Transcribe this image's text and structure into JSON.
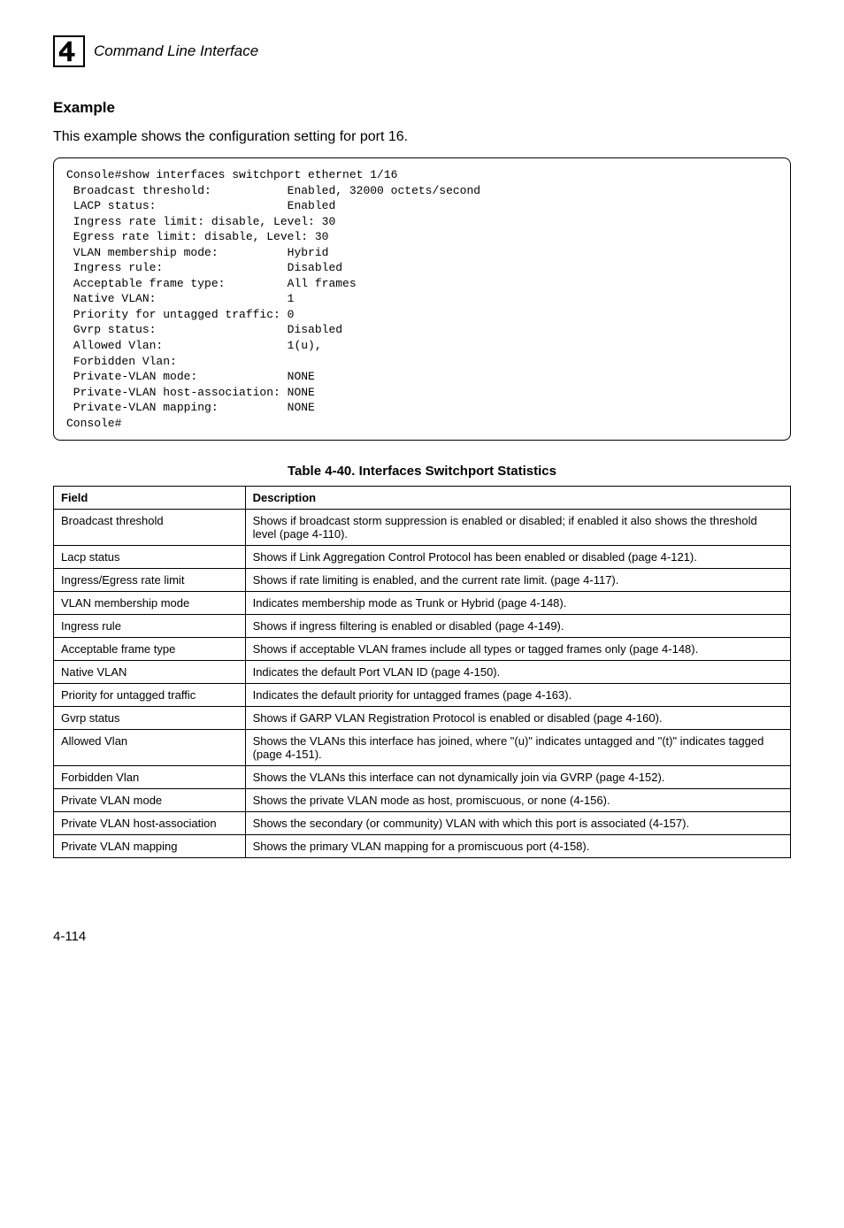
{
  "header": {
    "icon_number": "4",
    "text": "Command Line Interface"
  },
  "example": {
    "heading": "Example",
    "description": "This example shows the configuration setting for port 16."
  },
  "console_lines": [
    "Console#show interfaces switchport ethernet 1/16",
    " Broadcast threshold:           Enabled, 32000 octets/second",
    " LACP status:                   Enabled",
    " Ingress rate limit: disable, Level: 30",
    " Egress rate limit: disable, Level: 30",
    " VLAN membership mode:          Hybrid",
    " Ingress rule:                  Disabled",
    " Acceptable frame type:         All frames",
    " Native VLAN:                   1",
    " Priority for untagged traffic: 0",
    " Gvrp status:                   Disabled",
    " Allowed Vlan:                  1(u),",
    " Forbidden Vlan:",
    " Private-VLAN mode:             NONE",
    " Private-VLAN host-association: NONE",
    " Private-VLAN mapping:          NONE",
    "Console#"
  ],
  "table": {
    "caption": "Table 4-40.  Interfaces Switchport Statistics",
    "columns": [
      "Field",
      "Description"
    ],
    "rows": [
      [
        "Broadcast threshold",
        "Shows if broadcast storm suppression is enabled or disabled; if enabled it also shows the threshold level (page 4-110)."
      ],
      [
        "Lacp status",
        "Shows if Link Aggregation Control Protocol has been enabled or disabled (page 4-121)."
      ],
      [
        "Ingress/Egress rate limit",
        "Shows if rate limiting is enabled, and the current rate limit. (page 4-117)."
      ],
      [
        "VLAN membership mode",
        "Indicates membership mode as Trunk or Hybrid (page 4-148)."
      ],
      [
        "Ingress rule",
        "Shows if ingress filtering is enabled or disabled (page 4-149)."
      ],
      [
        "Acceptable frame type",
        "Shows if acceptable VLAN frames include all types or tagged frames only (page 4-148)."
      ],
      [
        "Native VLAN",
        "Indicates the default Port VLAN ID (page 4-150)."
      ],
      [
        "Priority for untagged traffic",
        "Indicates the default priority for untagged frames (page 4-163)."
      ],
      [
        "Gvrp status",
        "Shows if GARP VLAN Registration Protocol is enabled or disabled (page 4-160)."
      ],
      [
        "Allowed Vlan",
        "Shows the VLANs this interface has joined, where \"(u)\" indicates untagged and \"(t)\" indicates tagged (page 4-151)."
      ],
      [
        "Forbidden Vlan",
        "Shows the VLANs this interface can not dynamically join via GVRP (page 4-152)."
      ],
      [
        "Private VLAN mode",
        "Shows the private VLAN mode as host, promiscuous, or none (4-156)."
      ],
      [
        "Private VLAN host-association",
        "Shows the secondary (or community) VLAN with which this port is associated (4-157)."
      ],
      [
        "Private VLAN mapping",
        "Shows the primary VLAN mapping for a promiscuous port (4-158)."
      ]
    ]
  },
  "page_number": "4-114",
  "colors": {
    "text": "#000000",
    "background": "#ffffff",
    "border": "#000000"
  }
}
